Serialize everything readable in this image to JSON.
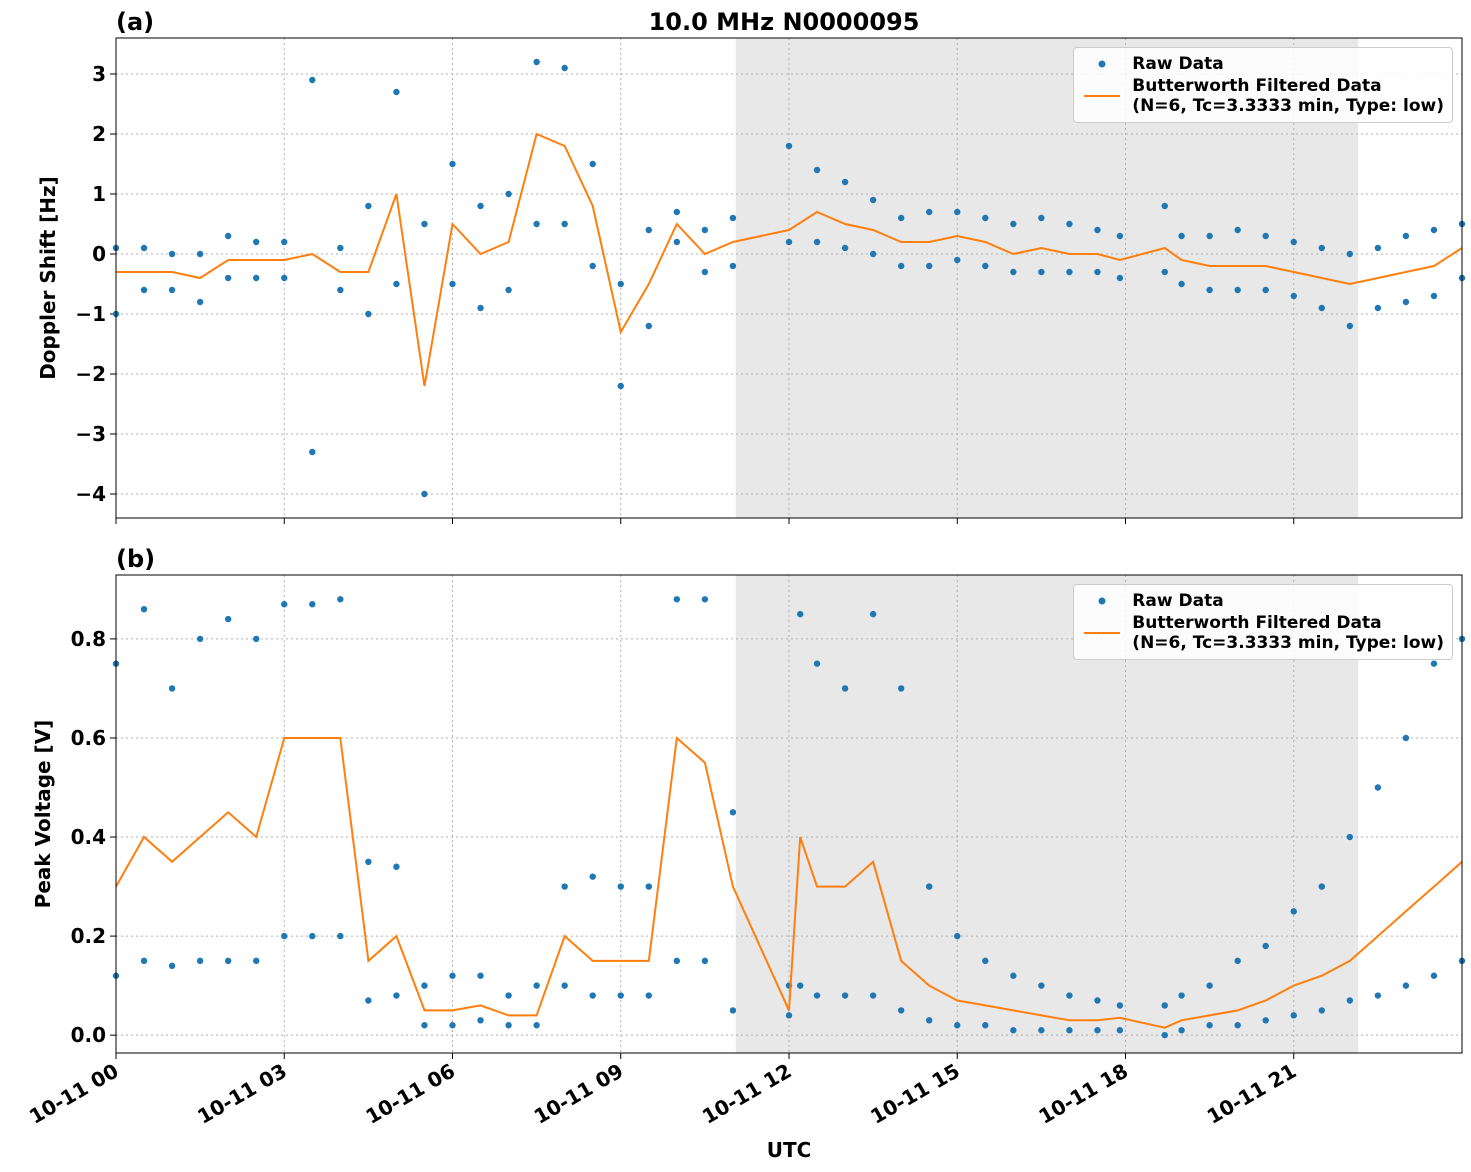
{
  "chart_data": [
    {
      "type": "scatter-line",
      "panel_label": "(a)",
      "title": "10.0 MHz N0000095",
      "ylabel": "Doppler Shift [Hz]",
      "xlim": [
        0,
        24
      ],
      "xticks": [
        0,
        3,
        6,
        9,
        12,
        15,
        18,
        21
      ],
      "ylim": [
        -4.4,
        3.6
      ],
      "yticks": [
        {
          "value": -4,
          "label": "−4"
        },
        {
          "value": -3,
          "label": "−3"
        },
        {
          "value": -2,
          "label": "−2"
        },
        {
          "value": -1,
          "label": "−1"
        },
        0,
        1,
        2,
        3
      ],
      "grid": true,
      "legend": "upper right",
      "shade": [
        11.05,
        22.15
      ],
      "shade_color": "#e8e8e8",
      "series": [
        {
          "name": "Raw Data",
          "color": "#1f77b4",
          "x": [
            0,
            0.5,
            1,
            1.5,
            2,
            2.5,
            3,
            3.5,
            4,
            4.5,
            5,
            5.5,
            6,
            6.5,
            7,
            7.5,
            8,
            8.5,
            9,
            9.5,
            10,
            10.5,
            11,
            12,
            12.5,
            13,
            13.5,
            14,
            14.5,
            15,
            15.5,
            16,
            16.5,
            17,
            17.5,
            17.9,
            18.7,
            19,
            19.5,
            20,
            20.5,
            21,
            21.5,
            22,
            22.5,
            23,
            23.5,
            24,
            0,
            0.5,
            1,
            1.5,
            2,
            2.5,
            3,
            3.5,
            4,
            4.5,
            5,
            5.5,
            6,
            6.5,
            7,
            7.5,
            8,
            8.5,
            9,
            9.5,
            10,
            10.5,
            11,
            12,
            12.5,
            13,
            13.5,
            14,
            14.5,
            15,
            15.5,
            16,
            16.5,
            17,
            17.5,
            17.9,
            18.7,
            19,
            19.5,
            20,
            20.5,
            21,
            21.5,
            22,
            22.5,
            23,
            23.5,
            24
          ],
          "values": [
            -1.0,
            -0.6,
            -0.6,
            -0.8,
            -0.4,
            -0.4,
            -0.4,
            -3.3,
            -0.6,
            -1.0,
            -0.5,
            -4.0,
            -0.5,
            -0.9,
            -0.6,
            0.5,
            0.5,
            -0.2,
            -2.2,
            -1.2,
            0.2,
            -0.3,
            -0.2,
            0.2,
            0.2,
            0.1,
            0.0,
            -0.2,
            -0.2,
            -0.1,
            -0.2,
            -0.3,
            -0.3,
            -0.3,
            -0.3,
            -0.4,
            -0.3,
            -0.5,
            -0.6,
            -0.6,
            -0.6,
            -0.7,
            -0.9,
            -1.2,
            -0.9,
            -0.8,
            -0.7,
            -0.4,
            0.1,
            0.1,
            0.0,
            0.0,
            0.3,
            0.2,
            0.2,
            2.9,
            0.1,
            0.8,
            2.7,
            0.5,
            1.5,
            0.8,
            1.0,
            3.2,
            3.1,
            1.5,
            -0.5,
            0.4,
            0.7,
            0.4,
            0.6,
            1.8,
            1.4,
            1.2,
            0.9,
            0.6,
            0.7,
            0.7,
            0.6,
            0.5,
            0.6,
            0.5,
            0.4,
            0.3,
            0.8,
            0.3,
            0.3,
            0.4,
            0.3,
            0.2,
            0.1,
            0.0,
            0.1,
            0.3,
            0.4,
            0.5
          ]
        },
        {
          "name": "Butterworth Filtered Data\n(N=6, Tc=3.3333 min, Type: low)",
          "color": "#ff7f0e",
          "x": [
            0,
            0.5,
            1,
            1.5,
            2,
            2.5,
            3,
            3.5,
            4,
            4.5,
            5,
            5.5,
            6,
            6.5,
            7,
            7.5,
            8,
            8.5,
            9,
            9.5,
            10,
            10.5,
            11,
            12,
            12.5,
            13,
            13.5,
            14,
            14.5,
            15,
            15.5,
            16,
            16.5,
            17,
            17.5,
            17.9,
            18.7,
            19,
            19.5,
            20,
            20.5,
            21,
            21.5,
            22,
            22.5,
            23,
            23.5,
            24
          ],
          "values": [
            -0.3,
            -0.3,
            -0.3,
            -0.4,
            -0.1,
            -0.1,
            -0.1,
            0.0,
            -0.3,
            -0.3,
            1.0,
            -2.2,
            0.5,
            0.0,
            0.2,
            2.0,
            1.8,
            0.8,
            -1.3,
            -0.5,
            0.5,
            0.0,
            0.2,
            0.4,
            0.7,
            0.5,
            0.4,
            0.2,
            0.2,
            0.3,
            0.2,
            0.0,
            0.1,
            0.0,
            0.0,
            -0.1,
            0.1,
            -0.1,
            -0.2,
            -0.2,
            -0.2,
            -0.3,
            -0.4,
            -0.5,
            -0.4,
            -0.3,
            -0.2,
            0.1
          ]
        }
      ]
    },
    {
      "type": "scatter-line",
      "panel_label": "(b)",
      "ylabel": "Peak Voltage [V]",
      "xlabel": "UTC",
      "xlim": [
        0,
        24
      ],
      "xticks": [
        {
          "value": 0,
          "label": "10-11 00"
        },
        {
          "value": 3,
          "label": "10-11 03"
        },
        {
          "value": 6,
          "label": "10-11 06"
        },
        {
          "value": 9,
          "label": "10-11 09"
        },
        {
          "value": 12,
          "label": "10-11 12"
        },
        {
          "value": 15,
          "label": "10-11 15"
        },
        {
          "value": 18,
          "label": "10-11 18"
        },
        {
          "value": 21,
          "label": "10-11 21"
        }
      ],
      "ylim": [
        -0.036,
        0.929
      ],
      "yticks": [
        {
          "value": 0,
          "label": "0.0"
        },
        0.2,
        0.4,
        0.6,
        0.8
      ],
      "grid": true,
      "legend": "upper right",
      "shade": [
        11.05,
        22.15
      ],
      "shade_color": "#e8e8e8",
      "series": [
        {
          "name": "Raw Data",
          "color": "#1f77b4",
          "x": [
            0,
            0.5,
            1,
            1.5,
            2,
            2.5,
            3,
            3.5,
            4,
            4.5,
            5,
            5.5,
            6,
            6.5,
            7,
            7.5,
            8,
            8.5,
            9,
            9.5,
            10,
            10.5,
            11,
            12,
            12.2,
            12.5,
            13,
            13.5,
            14,
            14.5,
            15,
            15.5,
            16,
            16.5,
            17,
            17.5,
            17.9,
            18.7,
            19,
            19.5,
            20,
            20.5,
            21,
            21.5,
            22,
            22.5,
            23,
            23.5,
            24,
            0,
            0.5,
            1,
            1.5,
            2,
            2.5,
            3,
            3.5,
            4,
            4.5,
            5,
            5.5,
            6,
            6.5,
            7,
            7.5,
            8,
            8.5,
            9,
            9.5,
            10,
            10.5,
            11,
            12,
            12.2,
            12.5,
            13,
            13.5,
            14,
            14.5,
            15,
            15.5,
            16,
            16.5,
            17,
            17.5,
            17.9,
            18.7,
            19,
            19.5,
            20,
            20.5,
            21,
            21.5,
            22,
            22.5,
            23,
            23.5,
            24
          ],
          "values": [
            0.12,
            0.15,
            0.14,
            0.15,
            0.15,
            0.15,
            0.2,
            0.2,
            0.2,
            0.07,
            0.08,
            0.02,
            0.02,
            0.03,
            0.02,
            0.02,
            0.1,
            0.08,
            0.08,
            0.08,
            0.15,
            0.15,
            0.05,
            0.04,
            0.1,
            0.08,
            0.08,
            0.08,
            0.05,
            0.03,
            0.02,
            0.02,
            0.01,
            0.01,
            0.01,
            0.01,
            0.01,
            0.0,
            0.01,
            0.02,
            0.02,
            0.03,
            0.04,
            0.05,
            0.07,
            0.08,
            0.1,
            0.12,
            0.15,
            0.75,
            0.86,
            0.7,
            0.8,
            0.84,
            0.8,
            0.87,
            0.87,
            0.88,
            0.35,
            0.34,
            0.1,
            0.12,
            0.12,
            0.08,
            0.1,
            0.3,
            0.32,
            0.3,
            0.3,
            0.88,
            0.88,
            0.45,
            0.1,
            0.85,
            0.75,
            0.7,
            0.85,
            0.7,
            0.3,
            0.2,
            0.15,
            0.12,
            0.1,
            0.08,
            0.07,
            0.06,
            0.06,
            0.08,
            0.1,
            0.15,
            0.18,
            0.25,
            0.3,
            0.4,
            0.5,
            0.6,
            0.75,
            0.8
          ]
        },
        {
          "name": "Butterworth Filtered Data\n(N=6, Tc=3.3333 min, Type: low)",
          "color": "#ff7f0e",
          "x": [
            0,
            0.5,
            1,
            1.5,
            2,
            2.5,
            3,
            3.5,
            4,
            4.5,
            5,
            5.5,
            6,
            6.5,
            7,
            7.5,
            8,
            8.5,
            9,
            9.5,
            10,
            10.5,
            11,
            12,
            12.2,
            12.5,
            13,
            13.5,
            14,
            14.5,
            15,
            15.5,
            16,
            16.5,
            17,
            17.5,
            17.9,
            18.7,
            19,
            19.5,
            20,
            20.5,
            21,
            21.5,
            22,
            22.5,
            23,
            23.5,
            24
          ],
          "values": [
            0.3,
            0.4,
            0.35,
            0.4,
            0.45,
            0.4,
            0.6,
            0.6,
            0.6,
            0.15,
            0.2,
            0.05,
            0.05,
            0.06,
            0.04,
            0.04,
            0.2,
            0.15,
            0.15,
            0.15,
            0.6,
            0.55,
            0.3,
            0.05,
            0.4,
            0.3,
            0.3,
            0.35,
            0.15,
            0.1,
            0.07,
            0.06,
            0.05,
            0.04,
            0.03,
            0.03,
            0.035,
            0.015,
            0.03,
            0.04,
            0.05,
            0.07,
            0.1,
            0.12,
            0.15,
            0.2,
            0.25,
            0.3,
            0.35
          ]
        }
      ]
    }
  ]
}
